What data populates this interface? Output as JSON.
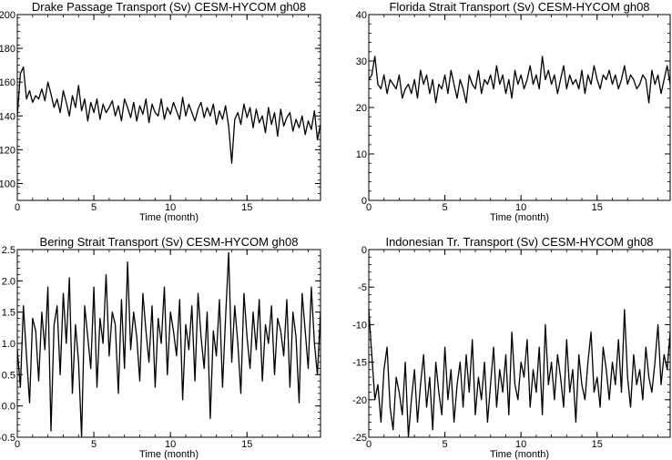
{
  "chart_data": [
    {
      "type": "line",
      "title": "Drake Passage Transport (Sv) CESM-HYCOM gh08",
      "xlabel": "Time (month)",
      "ylabel": "",
      "xlim": [
        0,
        19.8
      ],
      "ylim": [
        90,
        200
      ],
      "xticks": [
        0,
        5,
        10,
        15
      ],
      "yticks": [
        100,
        120,
        140,
        160,
        180,
        200
      ],
      "x": [
        0.0,
        0.2,
        0.4,
        0.6,
        0.8,
        1.0,
        1.2,
        1.4,
        1.6,
        1.8,
        2.0,
        2.2,
        2.4,
        2.6,
        2.8,
        3.0,
        3.2,
        3.4,
        3.6,
        3.8,
        4.0,
        4.2,
        4.4,
        4.6,
        4.8,
        5.0,
        5.2,
        5.4,
        5.6,
        5.8,
        6.0,
        6.2,
        6.4,
        6.6,
        6.8,
        7.0,
        7.2,
        7.4,
        7.6,
        7.8,
        8.0,
        8.2,
        8.4,
        8.6,
        8.8,
        9.0,
        9.2,
        9.4,
        9.6,
        9.8,
        10.0,
        10.2,
        10.4,
        10.6,
        10.8,
        11.0,
        11.2,
        11.4,
        11.6,
        11.8,
        12.0,
        12.2,
        12.4,
        12.6,
        12.8,
        13.0,
        13.2,
        13.4,
        13.6,
        13.8,
        14.0,
        14.2,
        14.4,
        14.6,
        14.8,
        15.0,
        15.2,
        15.4,
        15.6,
        15.8,
        16.0,
        16.2,
        16.4,
        16.6,
        16.8,
        17.0,
        17.2,
        17.4,
        17.6,
        17.8,
        18.0,
        18.2,
        18.4,
        18.6,
        18.8,
        19.0,
        19.2,
        19.4,
        19.6,
        19.8
      ],
      "series": [
        {
          "values": [
            140,
            165,
            169,
            150,
            155,
            148,
            152,
            150,
            156,
            149,
            160,
            153,
            145,
            150,
            142,
            155,
            148,
            140,
            152,
            145,
            158,
            143,
            150,
            137,
            148,
            142,
            150,
            138,
            147,
            142,
            145,
            149,
            140,
            146,
            137,
            150,
            145,
            139,
            148,
            137,
            146,
            141,
            150,
            136,
            147,
            142,
            140,
            150,
            138,
            145,
            141,
            148,
            143,
            138,
            151,
            140,
            147,
            142,
            137,
            144,
            148,
            139,
            145,
            140,
            147,
            135,
            143,
            138,
            146,
            134,
            112,
            138,
            142,
            135,
            147,
            139,
            145,
            133,
            144,
            136,
            140,
            130,
            145,
            135,
            142,
            128,
            144,
            134,
            139,
            142,
            131,
            138,
            133,
            140,
            129,
            137,
            132,
            143,
            126,
            135
          ]
        }
      ]
    },
    {
      "type": "line",
      "title": "Florida Strait Transport (Sv) CESM-HYCOM gh08",
      "xlabel": "Time (month)",
      "ylabel": "",
      "xlim": [
        0,
        19.8
      ],
      "ylim": [
        0,
        40
      ],
      "xticks": [
        0,
        5,
        10,
        15
      ],
      "yticks": [
        0,
        10,
        20,
        30,
        40
      ],
      "x": [
        0.0,
        0.2,
        0.4,
        0.6,
        0.8,
        1.0,
        1.2,
        1.4,
        1.6,
        1.8,
        2.0,
        2.2,
        2.4,
        2.6,
        2.8,
        3.0,
        3.2,
        3.4,
        3.6,
        3.8,
        4.0,
        4.2,
        4.4,
        4.6,
        4.8,
        5.0,
        5.2,
        5.4,
        5.6,
        5.8,
        6.0,
        6.2,
        6.4,
        6.6,
        6.8,
        7.0,
        7.2,
        7.4,
        7.6,
        7.8,
        8.0,
        8.2,
        8.4,
        8.6,
        8.8,
        9.0,
        9.2,
        9.4,
        9.6,
        9.8,
        10.0,
        10.2,
        10.4,
        10.6,
        10.8,
        11.0,
        11.2,
        11.4,
        11.6,
        11.8,
        12.0,
        12.2,
        12.4,
        12.6,
        12.8,
        13.0,
        13.2,
        13.4,
        13.6,
        13.8,
        14.0,
        14.2,
        14.4,
        14.6,
        14.8,
        15.0,
        15.2,
        15.4,
        15.6,
        15.8,
        16.0,
        16.2,
        16.4,
        16.6,
        16.8,
        17.0,
        17.2,
        17.4,
        17.6,
        17.8,
        18.0,
        18.2,
        18.4,
        18.6,
        18.8,
        19.0,
        19.2,
        19.4,
        19.6,
        19.8
      ],
      "series": [
        {
          "values": [
            26,
            27,
            31,
            25,
            24,
            27,
            23,
            26,
            25,
            24,
            27,
            22,
            24,
            25,
            23,
            26,
            22,
            28,
            25,
            27,
            23,
            26,
            21,
            25,
            24,
            27,
            23,
            28,
            25,
            22,
            26,
            24,
            21,
            27,
            25,
            24,
            28,
            23,
            26,
            25,
            27,
            24,
            29,
            25,
            27,
            23,
            26,
            22,
            28,
            25,
            27,
            24,
            26,
            29,
            25,
            27,
            24,
            31,
            26,
            28,
            25,
            27,
            23,
            26,
            29,
            24,
            27,
            25,
            26,
            24,
            28,
            23,
            27,
            25,
            29,
            26,
            24,
            27,
            26,
            28,
            25,
            27,
            24,
            26,
            29,
            25,
            27,
            26,
            24,
            25,
            27,
            26,
            21,
            28,
            25,
            27,
            23,
            26,
            29,
            25
          ]
        }
      ]
    },
    {
      "type": "line",
      "title": "Bering Strait Transport (Sv) CESM-HYCOM gh08",
      "xlabel": "Time (month)",
      "ylabel": "",
      "xlim": [
        0,
        19.8
      ],
      "ylim": [
        -0.5,
        2.5
      ],
      "xticks": [
        0,
        5,
        10,
        15
      ],
      "yticks": [
        -0.5,
        0.0,
        0.5,
        1.0,
        1.5,
        2.0,
        2.5
      ],
      "ytick_labels": [
        "-0.5",
        "0.0",
        "0.5",
        "1.0",
        "1.5",
        "2.0",
        "2.5"
      ],
      "x": [
        0.0,
        0.2,
        0.4,
        0.6,
        0.8,
        1.0,
        1.2,
        1.4,
        1.6,
        1.8,
        2.0,
        2.2,
        2.4,
        2.6,
        2.8,
        3.0,
        3.2,
        3.4,
        3.6,
        3.8,
        4.0,
        4.2,
        4.4,
        4.6,
        4.8,
        5.0,
        5.2,
        5.4,
        5.6,
        5.8,
        6.0,
        6.2,
        6.4,
        6.6,
        6.8,
        7.0,
        7.2,
        7.4,
        7.6,
        7.8,
        8.0,
        8.2,
        8.4,
        8.6,
        8.8,
        9.0,
        9.2,
        9.4,
        9.6,
        9.8,
        10.0,
        10.2,
        10.4,
        10.6,
        10.8,
        11.0,
        11.2,
        11.4,
        11.6,
        11.8,
        12.0,
        12.2,
        12.4,
        12.6,
        12.8,
        13.0,
        13.2,
        13.4,
        13.6,
        13.8,
        14.0,
        14.2,
        14.4,
        14.6,
        14.8,
        15.0,
        15.2,
        15.4,
        15.6,
        15.8,
        16.0,
        16.2,
        16.4,
        16.6,
        16.8,
        17.0,
        17.2,
        17.4,
        17.6,
        17.8,
        18.0,
        18.2,
        18.4,
        18.6,
        18.8,
        19.0,
        19.2,
        19.4,
        19.6,
        19.8
      ],
      "series": [
        {
          "values": [
            0.9,
            0.3,
            1.6,
            0.8,
            0.05,
            1.4,
            1.2,
            0.4,
            1.5,
            0.9,
            1.9,
            -0.4,
            1.3,
            1.6,
            0.5,
            1.8,
            1.0,
            2.05,
            0.2,
            1.3,
            0.7,
            -0.5,
            1.6,
            1.1,
            0.6,
            1.9,
            0.3,
            1.4,
            1.0,
            2.1,
            0.8,
            1.5,
            1.3,
            0.2,
            1.7,
            0.6,
            2.3,
            0.9,
            1.5,
            1.1,
            0.4,
            1.8,
            1.2,
            0.7,
            1.6,
            0.3,
            1.4,
            1.0,
            1.9,
            0.5,
            1.5,
            1.2,
            0.8,
            1.7,
            0.1,
            1.3,
            0.9,
            1.6,
            0.4,
            1.8,
            1.1,
            0.6,
            1.5,
            -0.2,
            1.2,
            0.8,
            1.7,
            0.3,
            1.4,
            2.45,
            0.7,
            1.6,
            1.0,
            0.2,
            1.8,
            1.1,
            0.6,
            1.5,
            0.9,
            1.7,
            0.4,
            1.3,
            1.0,
            1.6,
            0.5,
            1.4,
            1.2,
            0.8,
            1.7,
            0.3,
            1.5,
            1.1,
            0.05,
            1.8,
            1.2,
            0.6,
            1.9,
            1.0,
            0.5,
            1.5
          ]
        }
      ]
    },
    {
      "type": "line",
      "title": "Indonesian Tr. Transport (Sv) CESM-HYCOM gh08",
      "xlabel": "Time (month)",
      "ylabel": "",
      "xlim": [
        0,
        19.8
      ],
      "ylim": [
        -25,
        0
      ],
      "xticks": [
        0,
        5,
        10,
        15
      ],
      "yticks": [
        -25,
        -20,
        -15,
        -10,
        -5,
        0
      ],
      "x": [
        0.0,
        0.2,
        0.4,
        0.6,
        0.8,
        1.0,
        1.2,
        1.4,
        1.6,
        1.8,
        2.0,
        2.2,
        2.4,
        2.6,
        2.8,
        3.0,
        3.2,
        3.4,
        3.6,
        3.8,
        4.0,
        4.2,
        4.4,
        4.6,
        4.8,
        5.0,
        5.2,
        5.4,
        5.6,
        5.8,
        6.0,
        6.2,
        6.4,
        6.6,
        6.8,
        7.0,
        7.2,
        7.4,
        7.6,
        7.8,
        8.0,
        8.2,
        8.4,
        8.6,
        8.8,
        9.0,
        9.2,
        9.4,
        9.6,
        9.8,
        10.0,
        10.2,
        10.4,
        10.6,
        10.8,
        11.0,
        11.2,
        11.4,
        11.6,
        11.8,
        12.0,
        12.2,
        12.4,
        12.6,
        12.8,
        13.0,
        13.2,
        13.4,
        13.6,
        13.8,
        14.0,
        14.2,
        14.4,
        14.6,
        14.8,
        15.0,
        15.2,
        15.4,
        15.6,
        15.8,
        16.0,
        16.2,
        16.4,
        16.6,
        16.8,
        17.0,
        17.2,
        17.4,
        17.6,
        17.8,
        18.0,
        18.2,
        18.4,
        18.6,
        18.8,
        19.0,
        19.2,
        19.4,
        19.6,
        19.8
      ],
      "series": [
        {
          "values": [
            -8,
            -14,
            -20,
            -18,
            -23,
            -16,
            -13,
            -21,
            -24,
            -17,
            -19,
            -22,
            -15,
            -25,
            -20,
            -16,
            -23,
            -18,
            -14,
            -21,
            -17,
            -24,
            -15,
            -19,
            -22,
            -13,
            -20,
            -16,
            -23,
            -18,
            -15,
            -21,
            -14,
            -19,
            -12,
            -22,
            -17,
            -20,
            -15,
            -23,
            -18,
            -13,
            -21,
            -16,
            -19,
            -14,
            -22,
            -11,
            -18,
            -20,
            -15,
            -17,
            -12,
            -21,
            -16,
            -19,
            -13,
            -22,
            -10,
            -18,
            -15,
            -20,
            -14,
            -17,
            -21,
            -12,
            -19,
            -16,
            -23,
            -14,
            -18,
            -20,
            -15,
            -11,
            -19,
            -17,
            -21,
            -13,
            -16,
            -20,
            -15,
            -18,
            -12,
            -19,
            -8,
            -17,
            -21,
            -14,
            -18,
            -16,
            -20,
            -13,
            -17,
            -19,
            -15,
            -10,
            -18,
            -14,
            -16,
            -11
          ]
        }
      ]
    }
  ]
}
